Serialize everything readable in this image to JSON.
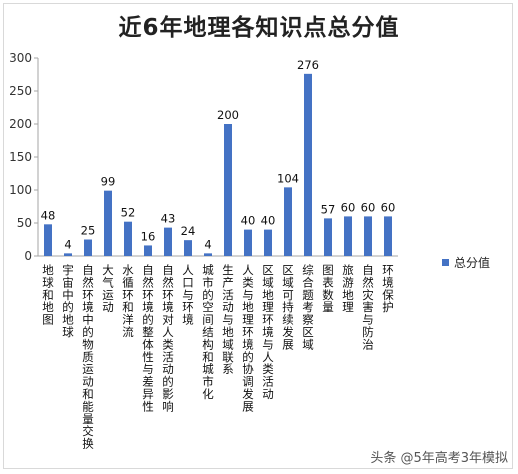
{
  "chart_data": {
    "type": "bar",
    "title": "近6年地理各知识点总分值",
    "categories": [
      "地球和地图",
      "宇宙中的地球",
      "自然环境中的物质运动和能量交换",
      "大气运动",
      "水循环和洋流",
      "自然环境的整体性与差异性",
      "自然环境对人类活动的影响",
      "人口与环境",
      "城市的空间结构和城市化",
      "生产活动与地域联系",
      "人类与地理环境的协调发展",
      "区域地理环境与人类活动",
      "区域可持续发展",
      "综合题考察区域",
      "图表数量",
      "旅游地理",
      "自然灾害与防治",
      "环境保护"
    ],
    "series": [
      {
        "name": "总分值",
        "values": [
          48,
          4,
          25,
          99,
          52,
          16,
          43,
          24,
          4,
          200,
          40,
          40,
          104,
          276,
          57,
          60,
          60,
          60
        ]
      }
    ],
    "ylim": [
      0,
      300
    ],
    "yticks": [
      0,
      50,
      100,
      150,
      200,
      250,
      300
    ],
    "grid": false,
    "legend": "right",
    "colors": {
      "bar": "#4472C4",
      "axis": "#a6a6a6"
    }
  },
  "watermark": "头条 @5年高考3年模拟"
}
